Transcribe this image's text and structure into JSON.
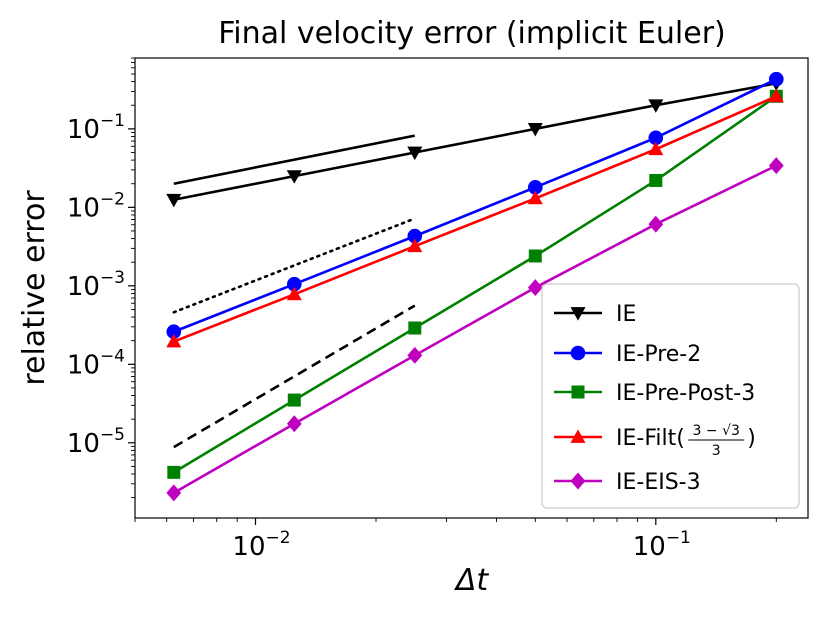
{
  "chart_data": {
    "type": "line",
    "title": "Final velocity error (implicit Euler)",
    "xlabel": "Δt",
    "ylabel": "relative error",
    "xscale": "log",
    "yscale": "log",
    "xlim": [
      0.005,
      0.24
    ],
    "ylim": [
      1.1e-06,
      0.8
    ],
    "xticks": [
      {
        "value": 0.01,
        "base": "10",
        "exp": "−2"
      },
      {
        "value": 0.1,
        "base": "10",
        "exp": "−1"
      }
    ],
    "yticks": [
      {
        "value": 0.1,
        "base": "10",
        "exp": "−1"
      },
      {
        "value": 0.01,
        "base": "10",
        "exp": "−2"
      },
      {
        "value": 0.001,
        "base": "10",
        "exp": "−3"
      },
      {
        "value": 0.0001,
        "base": "10",
        "exp": "−4"
      },
      {
        "value": 1e-05,
        "base": "10",
        "exp": "−5"
      }
    ],
    "legend_position": "lower-right",
    "x": [
      0.00625,
      0.0125,
      0.025,
      0.05,
      0.1,
      0.2
    ],
    "series": [
      {
        "name": "IE",
        "color": "#000000",
        "marker": "triangle-down",
        "values": [
          0.0125,
          0.025,
          0.05,
          0.1,
          0.2,
          0.38
        ]
      },
      {
        "name": "IE-Pre-2",
        "color": "#0000ff",
        "marker": "circle",
        "values": [
          0.00026,
          0.00105,
          0.0043,
          0.018,
          0.077,
          0.43
        ]
      },
      {
        "name": "IE-Pre-Post-3",
        "color": "#008000",
        "marker": "square",
        "values": [
          4.2e-06,
          3.5e-05,
          0.00029,
          0.0024,
          0.022,
          0.26
        ]
      },
      {
        "name": "IE-Filt",
        "label_suffix": "(3 − √3 / 3)",
        "color": "#ff0000",
        "marker": "triangle-up",
        "values": [
          0.000195,
          0.00078,
          0.0032,
          0.013,
          0.055,
          0.26
        ]
      },
      {
        "name": "IE-EIS-3",
        "color": "#bf00bf",
        "marker": "diamond",
        "values": [
          2.3e-06,
          1.75e-05,
          0.00013,
          0.00095,
          0.0061,
          0.034
        ]
      }
    ],
    "reference_lines": [
      {
        "style": "solid",
        "x": [
          0.00625,
          0.025
        ],
        "y": [
          0.02,
          0.082
        ]
      },
      {
        "style": "dotted",
        "x": [
          0.00625,
          0.025
        ],
        "y": [
          0.00046,
          0.0072
        ]
      },
      {
        "style": "dashed",
        "x": [
          0.00625,
          0.025
        ],
        "y": [
          8.8e-06,
          0.00056
        ]
      }
    ]
  },
  "legend_frac": {
    "num": "3 − √3",
    "den": "3"
  }
}
